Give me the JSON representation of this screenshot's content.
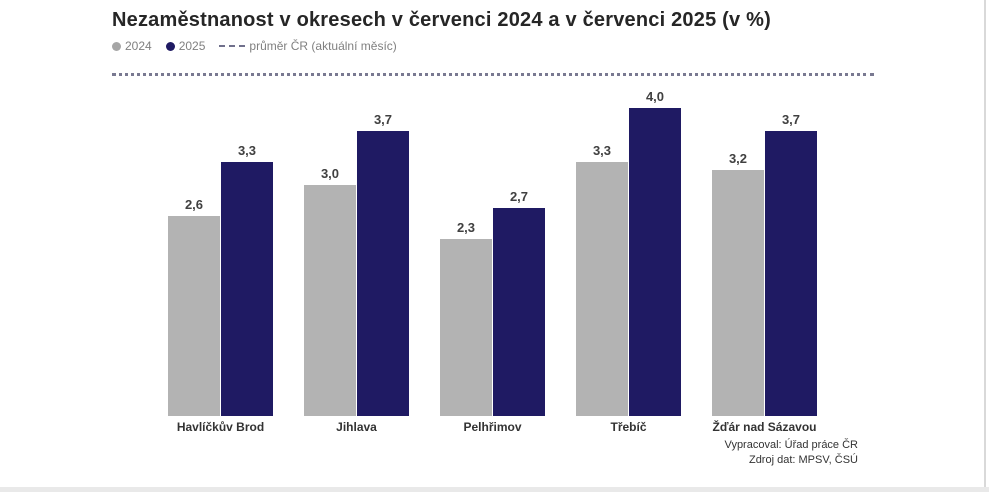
{
  "header": {
    "title": "Nezaměstnanost v okresech v červenci 2024 a v červenci 2025 (v %)"
  },
  "legend": {
    "items": [
      {
        "label": "2024",
        "marker": "circle",
        "color": "#a6a6a6"
      },
      {
        "label": "2025",
        "marker": "circle",
        "color": "#1f1a63"
      },
      {
        "label": "průměr ČR (aktuální měsíc)",
        "marker": "dashed-line",
        "color": "#70708c"
      }
    ]
  },
  "footer": {
    "line1": "Vypracoval: Úřad práce ČR",
    "line2": "Zdroj dat: MPSV, ČSÚ"
  },
  "colors": {
    "bar_2024": "#b3b3b3",
    "bar_2025": "#1f1a63",
    "average_line": "#797991",
    "value_label": "#404040",
    "title_text": "#262626",
    "legend_text": "#808080"
  },
  "chart_data": {
    "type": "bar",
    "title": "Nezaměstnanost v okresech v červenci 2024 a v červenci 2025 (v %)",
    "categories": [
      "Havlíčkův Brod",
      "Jihlava",
      "Pelhřimov",
      "Třebíč",
      "Žďár nad Sázavou"
    ],
    "series": [
      {
        "name": "2024",
        "color": "#b3b3b3",
        "values": [
          2.6,
          3.0,
          2.3,
          3.3,
          3.2
        ],
        "labels": [
          "2,6",
          "3,0",
          "2,3",
          "3,3",
          "3,2"
        ]
      },
      {
        "name": "2025",
        "color": "#1f1a63",
        "values": [
          3.3,
          3.7,
          2.7,
          4.0,
          3.7
        ],
        "labels": [
          "3,3",
          "3,7",
          "2,7",
          "4,0",
          "3,7"
        ]
      }
    ],
    "average_line": {
      "label": "průměr ČR (aktuální měsíc)",
      "value_estimate": 4.45,
      "style": "dotted"
    },
    "xlabel": "",
    "ylabel": "",
    "ylim": [
      0,
      4.6
    ],
    "grid": false,
    "legend_position": "top-left",
    "value_labels": "above-bars, comma decimal separator"
  }
}
